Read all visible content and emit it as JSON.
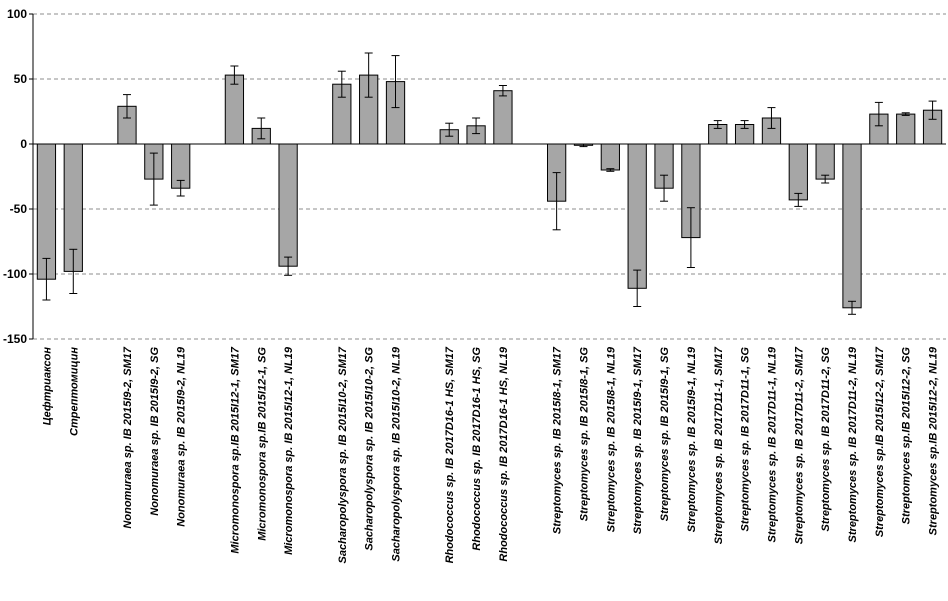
{
  "chart_data": {
    "type": "bar",
    "ylim": [
      -150,
      100
    ],
    "yticks": [
      100,
      50,
      0,
      -50,
      -100,
      -150
    ],
    "grid": true,
    "bar_color": "#a6a6a6",
    "categories": [
      "Цефтриаксон",
      "Стрептомицин",
      "",
      "Nonomuraea sp. IB 2015I9-2, SM17",
      "Nonomuraea sp. IB 2015I9-2, SG",
      "Nonomuraea sp. IB 2015I9-2, NL19",
      "",
      "Micromonospora sp.IB 2015I12-1, SM17",
      "Micromonospora sp.IB 2015I12-1, SG",
      "Micromonospora sp. IB 2015I12-1, NL19",
      "",
      "Sacharopolyspora sp. IB 2015I10-2, SM17",
      "Sacharopolyspora sp. IB 2015I10-2, SG",
      "Sacharopolyspora sp. IB 2015I10-2, NL19",
      "",
      "Rhodococcus sp. IB 2017D16-1 HS, SM17",
      "Rhodococcus sp. IB 2017D16-1 HS, SG",
      "Rhodococcus sp. IB 2017D16-1 HS, NL19",
      "",
      "Streptomyces sp.  IB 2015I8-1, SM17",
      "Streptomyces sp.  IB 2015I8-1, SG",
      "Streptomyces sp.  IB 2015I8-1, NL19",
      "Streptomyces sp. IB 2015I9-1, SM17",
      "Streptomyces sp. IB 2015I9-1, SG",
      "Streptomyces sp. IB 2015I9-1, NL19",
      "Streptomyces sp. IB 2017D11-1, SM17",
      "Streptomyces sp. IB 2017D11-1, SG",
      "Streptomyces sp. IB 2017D11-1, NL19",
      "Streptomyces sp. IB 2017D11-2, SM17",
      "Streptomyces sp. IB 2017D11-2, SG",
      "Streptomyces sp. IB 2017D11-2, NL19",
      "Streptomyces sp.IB 2015I12-2, SM17",
      "Streptomyces sp.IB 2015I12-2, SG",
      "Streptomyces sp.IB 2015I12-2, NL19"
    ],
    "values": [
      -104,
      -98,
      null,
      29,
      -27,
      -34,
      null,
      53,
      12,
      -94,
      null,
      46,
      53,
      48,
      null,
      11,
      14,
      41,
      null,
      -44,
      -1,
      -20,
      -111,
      -34,
      -72,
      15,
      15,
      20,
      -43,
      -27,
      -126,
      23,
      23,
      26
    ],
    "errors": [
      16,
      17,
      null,
      9,
      20,
      6,
      null,
      7,
      8,
      7,
      null,
      10,
      17,
      20,
      null,
      5,
      6,
      4,
      null,
      22,
      1,
      1,
      14,
      10,
      23,
      3,
      3,
      8,
      5,
      3,
      5,
      9,
      1,
      7
    ]
  }
}
